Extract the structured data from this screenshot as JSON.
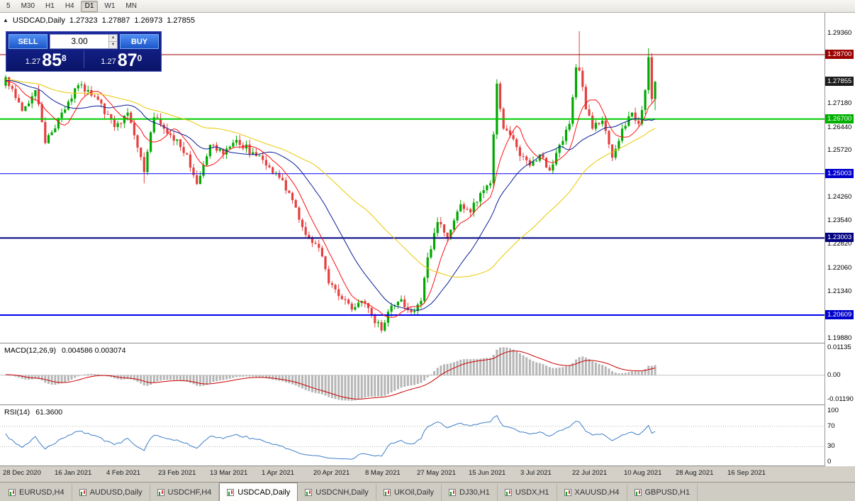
{
  "toolbar": {
    "periods": [
      "5",
      "M30",
      "H1",
      "H4",
      "D1",
      "W1",
      "MN"
    ],
    "active_period": "D1"
  },
  "chart_header": {
    "toggle_glyph": "▲",
    "symbol_title": "USDCAD,Daily",
    "open": "1.27323",
    "high": "1.27887",
    "low": "1.26973",
    "close": "1.27855"
  },
  "trade_panel": {
    "sell_label": "SELL",
    "buy_label": "BUY",
    "volume": "3.00",
    "spin_up_glyph": "▲",
    "spin_down_glyph": "▼",
    "sell_price": {
      "prefix": "1.27",
      "big": "85",
      "sup": "8"
    },
    "buy_price": {
      "prefix": "1.27",
      "big": "87",
      "sup": "0"
    }
  },
  "price_axis": {
    "labels": [
      "1.29360",
      "1.27180",
      "1.26440",
      "1.25720",
      "1.24260",
      "1.23540",
      "1.22820",
      "1.22060",
      "1.21340",
      "1.19880"
    ],
    "badges": [
      {
        "value": "1.28700",
        "color": "#9b0000"
      },
      {
        "value": "1.27855",
        "color": "#1c1c1c"
      },
      {
        "value": "1.26700",
        "color": "#00b000"
      },
      {
        "value": "1.25003",
        "color": "#0000cd"
      },
      {
        "value": "1.23003",
        "color": "#000080"
      },
      {
        "value": "1.20609",
        "color": "#0000cd"
      }
    ]
  },
  "macd_panel": {
    "label": "MACD(12,26,9)",
    "values": "0.004586 0.003074",
    "axis_labels": [
      "0.01135",
      "0.00",
      "-0.01190"
    ]
  },
  "rsi_panel": {
    "label": "RSI(14)",
    "value": "61.3600",
    "axis_labels": [
      "100",
      "70",
      "30",
      "0"
    ]
  },
  "date_axis": [
    "28 Dec 2020",
    "16 Jan 2021",
    "4 Feb 2021",
    "23 Feb 2021",
    "13 Mar 2021",
    "1 Apr 2021",
    "20 Apr 2021",
    "8 May 2021",
    "27 May 2021",
    "15 Jun 2021",
    "3 Jul 2021",
    "22 Jul 2021",
    "10 Aug 2021",
    "28 Aug 2021",
    "16 Sep 2021"
  ],
  "tabbar": {
    "tabs": [
      "EURUSD,H4",
      "AUDUSD,Daily",
      "USDCHF,H4",
      "USDCAD,Daily",
      "USDCNH,Daily",
      "UKOil,Daily",
      "DJ30,H1",
      "USDX,H1",
      "XAUUSD,H4",
      "GBPUSD,H1"
    ],
    "active": "USDCAD,Daily"
  },
  "chart_data": {
    "type": "candlestick",
    "symbol": "USDCAD",
    "timeframe": "Daily",
    "title": "USDCAD,Daily 1.27323 1.27887 1.26973 1.27855",
    "ohlc_current": {
      "open": 1.27323,
      "high": 1.27887,
      "low": 1.26973,
      "close": 1.27855
    },
    "y_range": [
      1.1975,
      1.3
    ],
    "bars": 198,
    "seed": 12345,
    "noise": 0.0022,
    "wick": 0.0016,
    "warmup": {
      "bars": 60,
      "start": 1.2665,
      "end": 1.279,
      "noise": 0.003
    },
    "price_keyframes": [
      [
        0,
        1.28
      ],
      [
        5,
        1.2695
      ],
      [
        9,
        1.276
      ],
      [
        12,
        1.2595
      ],
      [
        17,
        1.269
      ],
      [
        22,
        1.2775
      ],
      [
        27,
        1.274
      ],
      [
        33,
        1.2645
      ],
      [
        37,
        1.269
      ],
      [
        42,
        1.2505
      ],
      [
        45,
        1.2675
      ],
      [
        50,
        1.262
      ],
      [
        55,
        1.256
      ],
      [
        58,
        1.2468
      ],
      [
        62,
        1.259
      ],
      [
        66,
        1.256
      ],
      [
        70,
        1.2605
      ],
      [
        76,
        1.2555
      ],
      [
        80,
        1.252
      ],
      [
        84,
        1.248
      ],
      [
        88,
        1.2395
      ],
      [
        91,
        1.231
      ],
      [
        95,
        1.227
      ],
      [
        98,
        1.216
      ],
      [
        102,
        1.211
      ],
      [
        105,
        1.2078
      ],
      [
        108,
        1.2105
      ],
      [
        111,
        1.206
      ],
      [
        114,
        1.2013
      ],
      [
        117,
        1.209
      ],
      [
        120,
        1.211
      ],
      [
        123,
        1.207
      ],
      [
        126,
        1.2105
      ],
      [
        128,
        1.224
      ],
      [
        131,
        1.235
      ],
      [
        134,
        1.23
      ],
      [
        138,
        1.2405
      ],
      [
        141,
        1.238
      ],
      [
        144,
        1.244
      ],
      [
        147,
        1.247
      ],
      [
        149,
        1.278
      ],
      [
        151,
        1.264
      ],
      [
        153,
        1.262
      ],
      [
        156,
        1.2555
      ],
      [
        159,
        1.2525
      ],
      [
        162,
        1.256
      ],
      [
        165,
        1.251
      ],
      [
        168,
        1.259
      ],
      [
        171,
        1.2655
      ],
      [
        173,
        1.283
      ],
      [
        174,
        1.282
      ],
      [
        176,
        1.27
      ],
      [
        178,
        1.264
      ],
      [
        181,
        1.2665
      ],
      [
        184,
        1.255
      ],
      [
        187,
        1.264
      ],
      [
        190,
        1.269
      ],
      [
        192,
        1.2655
      ],
      [
        194,
        1.276
      ],
      [
        195,
        1.2862
      ],
      [
        196,
        1.2732
      ],
      [
        197,
        1.27855
      ]
    ],
    "wick_overrides": {
      "42": {
        "low": 1.247
      },
      "114": {
        "low": 1.2005
      },
      "174": {
        "high": 1.2943
      },
      "195": {
        "high": 1.289
      },
      "197": {
        "high": 1.27887,
        "low": 1.26973
      }
    },
    "up_color": "#00a800",
    "down_color": "#e44040",
    "moving_averages": [
      {
        "period": 8,
        "color": "#ff1010"
      },
      {
        "period": 21,
        "color": "#0a1e96"
      },
      {
        "period": 50,
        "color": "#e9c800"
      }
    ],
    "hlines": [
      {
        "price": 1.287,
        "color": "#9b0000",
        "width": 1
      },
      {
        "price": 1.267,
        "color": "#00cc00",
        "width": 2
      },
      {
        "price": 1.25003,
        "color": "#0000ff",
        "width": 1
      },
      {
        "price": 1.23003,
        "color": "#000080",
        "width": 2
      },
      {
        "price": 1.20609,
        "color": "#0000ee",
        "width": 2
      }
    ],
    "macd": {
      "fast": 12,
      "slow": 26,
      "signal": 9,
      "current_main": 0.004586,
      "current_signal": 0.003074,
      "hist_color": "#b6b6b6",
      "signal_color": "#cc0000"
    },
    "rsi": {
      "period": 14,
      "current": 61.36,
      "color": "#3e7ec8",
      "levels": [
        70,
        30
      ]
    }
  }
}
